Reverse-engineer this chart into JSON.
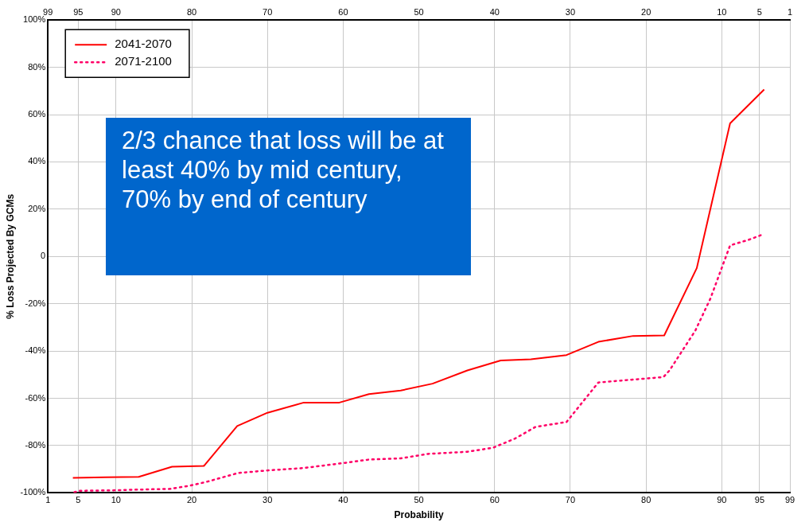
{
  "chart_data": {
    "type": "line",
    "xlabel": "Probability",
    "ylabel": "% Loss Projected By GCMs",
    "xlim": [
      1,
      99
    ],
    "xticks": [
      1,
      5,
      10,
      20,
      30,
      40,
      50,
      60,
      70,
      80,
      90,
      95,
      99
    ],
    "x2lim": [
      99,
      1
    ],
    "x2ticks": [
      99,
      95,
      90,
      80,
      70,
      60,
      50,
      40,
      30,
      20,
      10,
      5,
      1
    ],
    "ylim": [
      -100,
      100
    ],
    "yticks": [
      {
        "value": -100,
        "label": "-100%"
      },
      {
        "value": -80,
        "label": "-80%"
      },
      {
        "value": -60,
        "label": "-60%"
      },
      {
        "value": -40,
        "label": "-40%"
      },
      {
        "value": -20,
        "label": "-20%"
      },
      {
        "value": 0,
        "label": "0"
      },
      {
        "value": 20,
        "label": "20%"
      },
      {
        "value": 40,
        "label": "40%"
      },
      {
        "value": 60,
        "label": "60%"
      },
      {
        "value": 80,
        "label": "80%"
      },
      {
        "value": 100,
        "label": "100%"
      }
    ],
    "grid": true,
    "legend": "top left",
    "marker": "none",
    "annotations": [
      "2/3 chance that loss will be at least 40% by mid century, 70% by end of century"
    ],
    "series": [
      {
        "name": "2041-2070",
        "color": "#ff0000",
        "line_style": "solid",
        "x": [
          4.3,
          8.6,
          13.0,
          17.4,
          21.6,
          26.0,
          30.0,
          34.8,
          39.5,
          43.4,
          47.6,
          51.8,
          56.4,
          60.8,
          64.8,
          69.5,
          73.7,
          78.3,
          82.4,
          86.7,
          91.1,
          95.6
        ],
        "values": [
          -93.6,
          -93.4,
          -93.2,
          -88.9,
          -88.6,
          -71.7,
          -66.1,
          -61.8,
          -61.8,
          -58.2,
          -56.7,
          -53.8,
          -48.2,
          -44.0,
          -43.5,
          -41.7,
          -36.1,
          -33.6,
          -33.4,
          -4.9,
          56.3,
          70.6
        ]
      },
      {
        "name": "2071-2100",
        "color": "#ff0066",
        "line_style": "dotted",
        "x": [
          4.5,
          5.2,
          9.6,
          13.0,
          17.2,
          19.8,
          22.1,
          26.1,
          30.0,
          34.7,
          40.2,
          43.4,
          47.6,
          51.2,
          56.4,
          59.8,
          62.7,
          65.4,
          69.5,
          73.7,
          82.3,
          83.1,
          86.5,
          88.5,
          91.1,
          93.5,
          95.5
        ],
        "values": [
          -99.7,
          -99.1,
          -98.9,
          -98.6,
          -98.3,
          -96.9,
          -95.2,
          -91.6,
          -90.5,
          -89.5,
          -87.3,
          -85.9,
          -85.4,
          -83.5,
          -82.6,
          -80.9,
          -77.0,
          -72.1,
          -70.0,
          -53.3,
          -51.0,
          -48.2,
          -31.4,
          -17.8,
          4.7,
          7.0,
          9.4
        ]
      }
    ]
  }
}
